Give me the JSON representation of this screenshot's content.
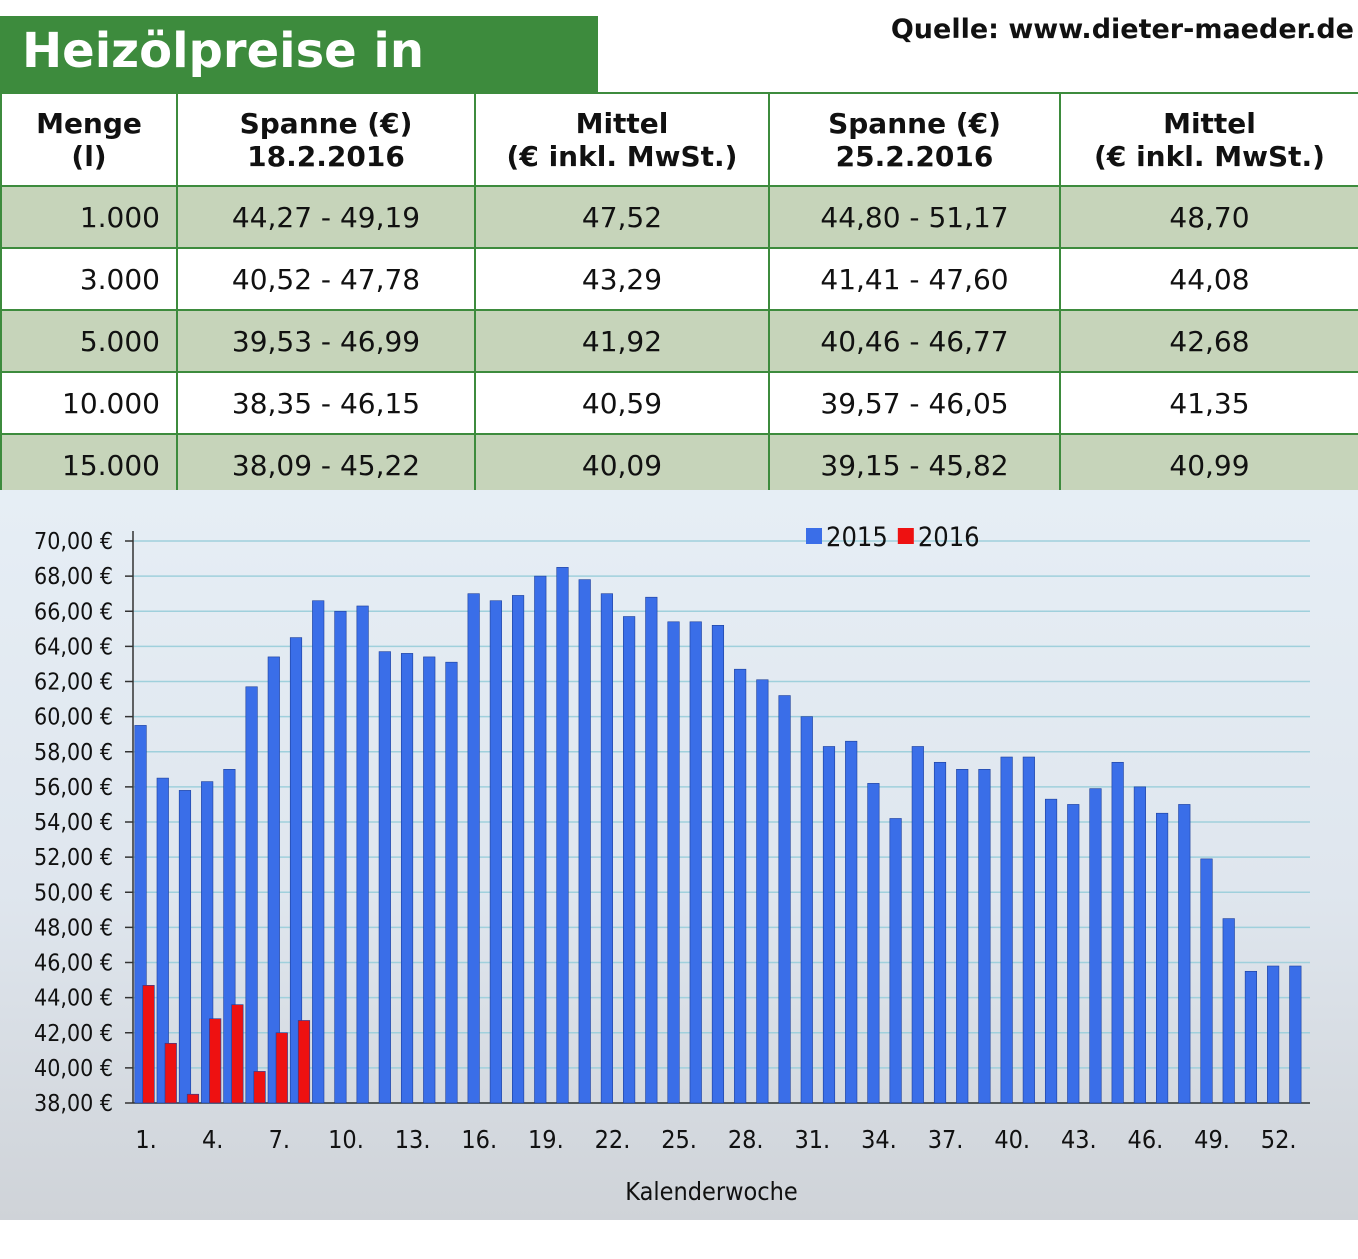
{
  "header": {
    "title": "Heizölpreise in Berlin",
    "source": "Quelle: www.dieter-maeder.de"
  },
  "table": {
    "columns": [
      "Menge\n(l)",
      "Spanne (€)\n18.2.2016",
      "Mittel\n(€ inkl. MwSt.)",
      "Spanne (€)\n25.2.2016",
      "Mittel\n(€ inkl. MwSt.)"
    ],
    "rows": [
      [
        "1.000",
        "44,27 - 49,19",
        "47,52",
        "44,80 - 51,17",
        "48,70"
      ],
      [
        "3.000",
        "40,52 - 47,78",
        "43,29",
        "41,41 - 47,60",
        "44,08"
      ],
      [
        "5.000",
        "39,53 - 46,99",
        "41,92",
        "40,46 - 46,77",
        "42,68"
      ],
      [
        "10.000",
        "38,35 - 46,15",
        "40,59",
        "39,57 - 46,05",
        "41,35"
      ],
      [
        "15.000",
        "38,09 - 45,22",
        "40,09",
        "39,15 - 45,82",
        "40,99"
      ]
    ]
  },
  "chart_data": {
    "type": "bar",
    "x_label": "Kalenderwoche",
    "categories": [
      "1.",
      null,
      null,
      "4.",
      null,
      null,
      "7.",
      null,
      null,
      "10.",
      null,
      null,
      "13.",
      null,
      null,
      "16.",
      null,
      null,
      "19.",
      null,
      null,
      "22.",
      null,
      null,
      "25.",
      null,
      null,
      "28.",
      null,
      null,
      "31.",
      null,
      null,
      "34.",
      null,
      null,
      "37.",
      null,
      null,
      "40.",
      null,
      null,
      "43.",
      null,
      null,
      "46.",
      null,
      null,
      "49.",
      null,
      null,
      "52.",
      null
    ],
    "series": [
      {
        "name": "2015",
        "color": "#3a6ee8",
        "values": [
          59.5,
          56.5,
          55.8,
          56.3,
          57.0,
          61.7,
          63.4,
          64.5,
          66.6,
          66.0,
          66.3,
          63.7,
          63.6,
          63.4,
          63.1,
          67.0,
          66.6,
          66.9,
          68.0,
          68.5,
          67.8,
          67.0,
          65.7,
          66.8,
          65.4,
          65.4,
          65.2,
          62.7,
          62.1,
          61.2,
          60.0,
          58.3,
          58.6,
          56.2,
          54.2,
          58.3,
          57.4,
          57.0,
          57.0,
          57.7,
          57.7,
          55.3,
          55.0,
          55.9,
          57.4,
          56.0,
          54.5,
          55.0,
          51.9,
          48.5,
          45.5,
          45.8,
          45.8
        ]
      },
      {
        "name": "2016",
        "color": "#ee1111",
        "values": [
          44.7,
          41.4,
          38.5,
          42.8,
          43.6,
          39.8,
          42.0,
          42.7,
          null,
          null,
          null,
          null,
          null,
          null,
          null,
          null,
          null,
          null,
          null,
          null,
          null,
          null,
          null,
          null,
          null,
          null,
          null,
          null,
          null,
          null,
          null,
          null,
          null,
          null,
          null,
          null,
          null,
          null,
          null,
          null,
          null,
          null,
          null,
          null,
          null,
          null,
          null,
          null,
          null,
          null,
          null,
          null,
          null
        ]
      }
    ],
    "ylim": [
      38,
      70
    ],
    "yticks": [
      {
        "value": 38,
        "label": "38,00 €"
      },
      {
        "value": 40,
        "label": "40,00 €"
      },
      {
        "value": 42,
        "label": "42,00 €"
      },
      {
        "value": 44,
        "label": "44,00 €"
      },
      {
        "value": 46,
        "label": "46,00 €"
      },
      {
        "value": 48,
        "label": "48,00 €"
      },
      {
        "value": 50,
        "label": "50,00 €"
      },
      {
        "value": 52,
        "label": "52,00 €"
      },
      {
        "value": 54,
        "label": "54,00 €"
      },
      {
        "value": 56,
        "label": "56,00 €"
      },
      {
        "value": 58,
        "label": "58,00 €"
      },
      {
        "value": 60,
        "label": "60,00 €"
      },
      {
        "value": 62,
        "label": "62,00 €"
      },
      {
        "value": 64,
        "label": "64,00 €"
      },
      {
        "value": 66,
        "label": "66,00 €"
      },
      {
        "value": 68,
        "label": "68,00 €"
      },
      {
        "value": 70,
        "label": "70,00 €"
      }
    ],
    "grid": true,
    "legend": "top"
  }
}
